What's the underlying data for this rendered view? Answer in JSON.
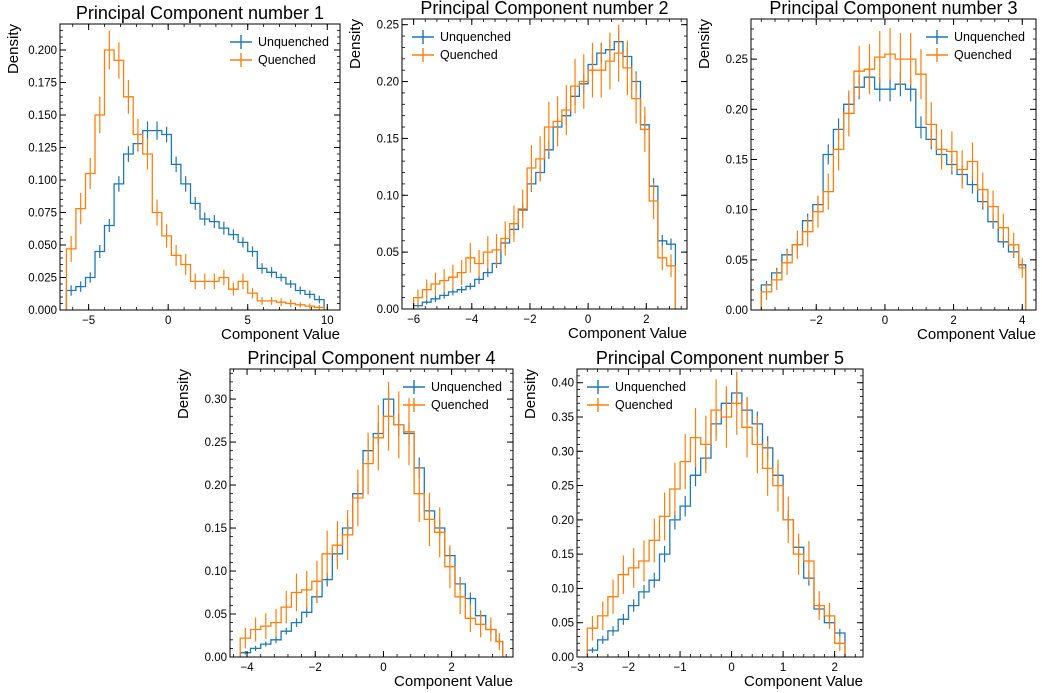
{
  "colors": {
    "unquenched": "#1f77b4",
    "quenched": "#ff7f0e"
  },
  "chart_data": [
    {
      "type": "histogram",
      "title": "Principal Component number 1",
      "xlabel": "Component Value",
      "ylabel": "Density",
      "xlim": [
        -6.8,
        10.8
      ],
      "ylim": [
        0,
        0.22
      ],
      "xticks": [
        -5,
        0,
        5,
        10
      ],
      "yticks": [
        0,
        0.025,
        0.05,
        0.075,
        0.1,
        0.125,
        0.15,
        0.175,
        0.2
      ],
      "ytick_labels": [
        "0.000",
        "0.025",
        "0.050",
        "0.075",
        "0.100",
        "0.125",
        "0.150",
        "0.175",
        "0.200"
      ],
      "legend": "top-right",
      "bin_edges": [
        -6.4,
        -5.8,
        -5.2,
        -4.6,
        -4.0,
        -3.4,
        -2.8,
        -2.2,
        -1.6,
        -1.0,
        -0.4,
        0.2,
        0.8,
        1.4,
        2.0,
        2.6,
        3.2,
        3.8,
        4.4,
        5.0,
        5.6,
        6.2,
        6.8,
        7.4,
        8.0,
        8.6,
        9.2,
        9.8
      ],
      "series": [
        {
          "name": "Unquenched",
          "values": [
            0.015,
            0.018,
            0.025,
            0.045,
            0.065,
            0.097,
            0.12,
            0.128,
            0.138,
            0.138,
            0.135,
            0.112,
            0.097,
            0.082,
            0.07,
            0.068,
            0.063,
            0.058,
            0.052,
            0.045,
            0.032,
            0.029,
            0.025,
            0.02,
            0.015,
            0.012,
            0.008
          ],
          "errors": [
            0.004,
            0.004,
            0.004,
            0.005,
            0.005,
            0.006,
            0.006,
            0.006,
            0.007,
            0.007,
            0.006,
            0.006,
            0.006,
            0.005,
            0.005,
            0.005,
            0.005,
            0.004,
            0.004,
            0.004,
            0.004,
            0.004,
            0.003,
            0.003,
            0.003,
            0.003,
            0.003
          ]
        },
        {
          "name": "Quenched",
          "values": [
            0.047,
            0.078,
            0.105,
            0.15,
            0.2,
            0.192,
            0.164,
            0.135,
            0.12,
            0.075,
            0.057,
            0.042,
            0.035,
            0.022,
            0.022,
            0.022,
            0.025,
            0.016,
            0.022,
            0.013,
            0.007,
            0.007,
            0.006,
            0.005,
            0.004,
            0.003,
            0.002
          ],
          "errors": [
            0.01,
            0.012,
            0.012,
            0.014,
            0.015,
            0.014,
            0.013,
            0.012,
            0.012,
            0.01,
            0.009,
            0.008,
            0.008,
            0.006,
            0.006,
            0.006,
            0.006,
            0.005,
            0.006,
            0.004,
            0.003,
            0.003,
            0.003,
            0.003,
            0.002,
            0.002,
            0.002
          ]
        }
      ]
    },
    {
      "type": "histogram",
      "title": "Principal Component number 2",
      "xlabel": "Component Value",
      "ylabel": "Density",
      "xlim": [
        -6.4,
        3.4
      ],
      "ylim": [
        0,
        0.255
      ],
      "xticks": [
        -6,
        -4,
        -2,
        0,
        2
      ],
      "yticks": [
        0,
        0.05,
        0.1,
        0.15,
        0.2,
        0.25
      ],
      "ytick_labels": [
        "0.00",
        "0.05",
        "0.10",
        "0.15",
        "0.20",
        "0.25"
      ],
      "legend": "top-left",
      "bin_edges": [
        -6.0,
        -5.7,
        -5.4,
        -5.1,
        -4.8,
        -4.5,
        -4.2,
        -3.9,
        -3.6,
        -3.3,
        -3.0,
        -2.7,
        -2.4,
        -2.1,
        -1.8,
        -1.5,
        -1.2,
        -0.9,
        -0.6,
        -0.3,
        0.0,
        0.3,
        0.6,
        0.9,
        1.2,
        1.5,
        1.8,
        2.1,
        2.4,
        2.7,
        3.0
      ],
      "series": [
        {
          "name": "Unquenched",
          "values": [
            0.003,
            0.006,
            0.009,
            0.012,
            0.015,
            0.017,
            0.02,
            0.026,
            0.032,
            0.04,
            0.058,
            0.07,
            0.087,
            0.11,
            0.12,
            0.14,
            0.16,
            0.17,
            0.187,
            0.198,
            0.215,
            0.225,
            0.228,
            0.235,
            0.222,
            0.2,
            0.162,
            0.108,
            0.06,
            0.057
          ],
          "errors": [
            0.002,
            0.002,
            0.003,
            0.003,
            0.003,
            0.003,
            0.003,
            0.004,
            0.004,
            0.004,
            0.005,
            0.005,
            0.006,
            0.007,
            0.007,
            0.008,
            0.008,
            0.008,
            0.008,
            0.009,
            0.009,
            0.009,
            0.009,
            0.009,
            0.009,
            0.009,
            0.008,
            0.007,
            0.005,
            0.005
          ]
        },
        {
          "name": "Quenched",
          "values": [
            0.01,
            0.017,
            0.022,
            0.025,
            0.028,
            0.032,
            0.045,
            0.04,
            0.05,
            0.052,
            0.062,
            0.075,
            0.088,
            0.124,
            0.132,
            0.16,
            0.165,
            0.175,
            0.196,
            0.2,
            0.21,
            0.21,
            0.218,
            0.225,
            0.212,
            0.185,
            0.158,
            0.095,
            0.045,
            0.038
          ],
          "errors": [
            0.007,
            0.009,
            0.01,
            0.01,
            0.011,
            0.011,
            0.013,
            0.012,
            0.014,
            0.014,
            0.015,
            0.016,
            0.017,
            0.02,
            0.02,
            0.022,
            0.022,
            0.022,
            0.024,
            0.024,
            0.024,
            0.024,
            0.025,
            0.025,
            0.024,
            0.022,
            0.02,
            0.016,
            0.011,
            0.01
          ]
        }
      ]
    },
    {
      "type": "histogram",
      "title": "Principal Component number 3",
      "xlabel": "Component Value",
      "ylabel": "Density",
      "xlim": [
        -3.9,
        4.4
      ],
      "ylim": [
        0,
        0.29
      ],
      "xticks": [
        -2,
        0,
        2,
        4
      ],
      "yticks": [
        0,
        0.05,
        0.1,
        0.15,
        0.2,
        0.25
      ],
      "ytick_labels": [
        "0.00",
        "0.05",
        "0.10",
        "0.15",
        "0.20",
        "0.25"
      ],
      "legend": "top-right",
      "bin_edges": [
        -3.6,
        -3.3,
        -3.0,
        -2.7,
        -2.4,
        -2.1,
        -1.8,
        -1.5,
        -1.2,
        -0.9,
        -0.6,
        -0.3,
        0.0,
        0.3,
        0.6,
        0.9,
        1.2,
        1.5,
        1.8,
        2.1,
        2.4,
        2.7,
        3.0,
        3.3,
        3.6,
        3.9,
        4.1
      ],
      "series": [
        {
          "name": "Unquenched",
          "values": [
            0.025,
            0.037,
            0.055,
            0.065,
            0.089,
            0.105,
            0.155,
            0.18,
            0.205,
            0.222,
            0.232,
            0.22,
            0.22,
            0.225,
            0.22,
            0.182,
            0.17,
            0.155,
            0.145,
            0.135,
            0.125,
            0.108,
            0.088,
            0.068,
            0.058,
            0.045
          ],
          "errors": [
            0.004,
            0.005,
            0.006,
            0.006,
            0.007,
            0.008,
            0.01,
            0.011,
            0.012,
            0.012,
            0.012,
            0.012,
            0.012,
            0.012,
            0.012,
            0.011,
            0.01,
            0.01,
            0.01,
            0.009,
            0.009,
            0.008,
            0.007,
            0.006,
            0.006,
            0.005
          ]
        },
        {
          "name": "Quenched",
          "values": [
            0.018,
            0.03,
            0.047,
            0.065,
            0.078,
            0.098,
            0.118,
            0.16,
            0.196,
            0.238,
            0.24,
            0.252,
            0.255,
            0.25,
            0.25,
            0.235,
            0.185,
            0.16,
            0.158,
            0.14,
            0.148,
            0.12,
            0.103,
            0.082,
            0.065,
            0.042
          ],
          "errors": [
            0.008,
            0.01,
            0.012,
            0.014,
            0.015,
            0.016,
            0.018,
            0.021,
            0.023,
            0.025,
            0.025,
            0.026,
            0.026,
            0.026,
            0.026,
            0.025,
            0.022,
            0.02,
            0.02,
            0.019,
            0.019,
            0.017,
            0.016,
            0.014,
            0.012,
            0.01
          ]
        }
      ]
    },
    {
      "type": "histogram",
      "title": "Principal Component number 4",
      "xlabel": "Component Value",
      "ylabel": "Density",
      "xlim": [
        -4.5,
        3.8
      ],
      "ylim": [
        0,
        0.335
      ],
      "xticks": [
        -4,
        -2,
        0,
        2
      ],
      "yticks": [
        0,
        0.05,
        0.1,
        0.15,
        0.2,
        0.25,
        0.3
      ],
      "ytick_labels": [
        "0.00",
        "0.05",
        "0.10",
        "0.15",
        "0.20",
        "0.25",
        "0.30"
      ],
      "legend": "top-right",
      "bin_edges": [
        -4.2,
        -3.9,
        -3.6,
        -3.3,
        -3.0,
        -2.7,
        -2.4,
        -2.1,
        -1.8,
        -1.5,
        -1.2,
        -0.9,
        -0.6,
        -0.3,
        0.0,
        0.3,
        0.6,
        0.9,
        1.2,
        1.5,
        1.8,
        2.1,
        2.4,
        2.7,
        3.0,
        3.3,
        3.5
      ],
      "series": [
        {
          "name": "Unquenched",
          "values": [
            0.005,
            0.01,
            0.015,
            0.02,
            0.03,
            0.04,
            0.052,
            0.07,
            0.09,
            0.12,
            0.15,
            0.19,
            0.24,
            0.26,
            0.3,
            0.27,
            0.26,
            0.22,
            0.17,
            0.15,
            0.118,
            0.085,
            0.068,
            0.048,
            0.032,
            0.018
          ],
          "errors": [
            0.002,
            0.003,
            0.003,
            0.004,
            0.004,
            0.005,
            0.006,
            0.007,
            0.008,
            0.009,
            0.01,
            0.011,
            0.012,
            0.013,
            0.014,
            0.013,
            0.013,
            0.012,
            0.011,
            0.01,
            0.009,
            0.008,
            0.007,
            0.006,
            0.005,
            0.004
          ]
        },
        {
          "name": "Quenched",
          "values": [
            0.022,
            0.032,
            0.036,
            0.04,
            0.058,
            0.075,
            0.078,
            0.088,
            0.12,
            0.13,
            0.142,
            0.185,
            0.225,
            0.255,
            0.28,
            0.27,
            0.262,
            0.19,
            0.16,
            0.145,
            0.105,
            0.07,
            0.045,
            0.038,
            0.032,
            0.018
          ],
          "errors": [
            0.012,
            0.014,
            0.015,
            0.016,
            0.019,
            0.022,
            0.022,
            0.024,
            0.027,
            0.028,
            0.029,
            0.033,
            0.036,
            0.038,
            0.04,
            0.039,
            0.039,
            0.033,
            0.031,
            0.029,
            0.025,
            0.02,
            0.016,
            0.015,
            0.014,
            0.01
          ]
        }
      ]
    },
    {
      "type": "histogram",
      "title": "Principal Component number 5",
      "xlabel": "Component Value",
      "ylabel": "Density",
      "xlim": [
        -3.0,
        2.55
      ],
      "ylim": [
        0,
        0.42
      ],
      "xticks": [
        -3,
        -2,
        -1,
        0,
        1,
        2
      ],
      "yticks": [
        0,
        0.05,
        0.1,
        0.15,
        0.2,
        0.25,
        0.3,
        0.35,
        0.4
      ],
      "ytick_labels": [
        "0.00",
        "0.05",
        "0.10",
        "0.15",
        "0.20",
        "0.25",
        "0.30",
        "0.35",
        "0.40"
      ],
      "legend": "top-left",
      "bin_edges": [
        -2.8,
        -2.6,
        -2.4,
        -2.2,
        -2.0,
        -1.8,
        -1.6,
        -1.4,
        -1.2,
        -1.0,
        -0.8,
        -0.6,
        -0.4,
        -0.2,
        0.0,
        0.2,
        0.4,
        0.6,
        0.8,
        1.0,
        1.2,
        1.4,
        1.6,
        1.8,
        2.0,
        2.2
      ],
      "series": [
        {
          "name": "Unquenched",
          "values": [
            0.01,
            0.025,
            0.038,
            0.055,
            0.075,
            0.095,
            0.112,
            0.15,
            0.2,
            0.22,
            0.265,
            0.29,
            0.34,
            0.37,
            0.385,
            0.36,
            0.34,
            0.305,
            0.265,
            0.2,
            0.16,
            0.115,
            0.07,
            0.05,
            0.035
          ],
          "errors": [
            0.004,
            0.006,
            0.007,
            0.008,
            0.009,
            0.01,
            0.011,
            0.012,
            0.014,
            0.015,
            0.016,
            0.017,
            0.018,
            0.019,
            0.019,
            0.019,
            0.018,
            0.017,
            0.016,
            0.014,
            0.013,
            0.011,
            0.008,
            0.007,
            0.006
          ]
        },
        {
          "name": "Quenched",
          "values": [
            0.042,
            0.06,
            0.088,
            0.12,
            0.13,
            0.14,
            0.17,
            0.205,
            0.245,
            0.285,
            0.32,
            0.31,
            0.36,
            0.35,
            0.37,
            0.335,
            0.31,
            0.275,
            0.25,
            0.2,
            0.15,
            0.14,
            0.075,
            0.06,
            0.02
          ],
          "errors": [
            0.018,
            0.021,
            0.025,
            0.028,
            0.029,
            0.03,
            0.032,
            0.035,
            0.038,
            0.04,
            0.043,
            0.042,
            0.045,
            0.045,
            0.046,
            0.044,
            0.042,
            0.04,
            0.038,
            0.034,
            0.03,
            0.029,
            0.021,
            0.019,
            0.011
          ]
        }
      ]
    }
  ]
}
